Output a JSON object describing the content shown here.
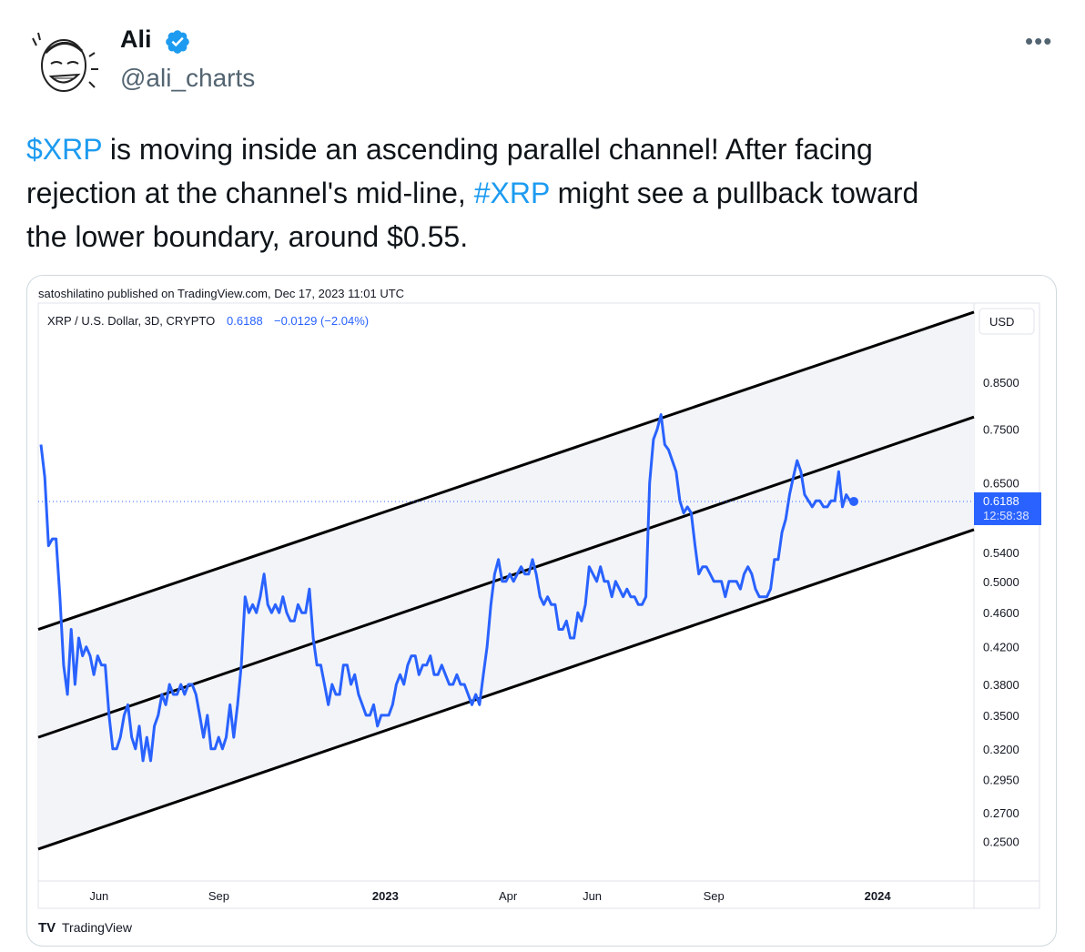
{
  "tweet": {
    "author_name": "Ali",
    "handle": "@ali_charts",
    "more_label": "•••",
    "text_parts": {
      "cashtag": "$XRP",
      "part1": " is moving inside an ascending parallel channel! After facing",
      "line2a": "rejection at the channel's mid-line, ",
      "hashtag": "#XRP",
      "line2b": " might see a pullback toward",
      "line3": "the lower boundary, around $0.55."
    },
    "colors": {
      "link": "#1d9bf0",
      "verified": "#1d9bf0",
      "chart_line": "#2962ff"
    },
    "avatar_icon": "cartoon-face-avatar"
  },
  "chart_header": {
    "published": "satoshilatino published on TradingView.com, Dec 17, 2023 11:01 UTC",
    "symbol": "XRP / U.S. Dollar, 3D, CRYPTO",
    "price": "0.6188",
    "change": "−0.0129 (−2.04%)",
    "currency": "USD",
    "last_price_label": "0.6188",
    "countdown": "12:58:38",
    "brand": "TradingView"
  },
  "chart_data": {
    "type": "line",
    "y_scale": "log",
    "ylim": [
      0.225,
      1.05
    ],
    "y_ticks": [
      "0.8500",
      "0.7500",
      "0.6500",
      "0.5400",
      "0.5000",
      "0.4600",
      "0.4200",
      "0.3800",
      "0.3500",
      "0.3200",
      "0.2950",
      "0.2700",
      "0.2500"
    ],
    "x_ticks": [
      "Jun",
      "Sep",
      "2023",
      "Apr",
      "Jun",
      "Sep",
      "2024"
    ],
    "channel": {
      "upper": [
        [
          0.0,
          0.44
        ],
        [
          1.0,
          1.025
        ]
      ],
      "middle": [
        [
          0.0,
          0.33
        ],
        [
          1.0,
          0.775
        ]
      ],
      "lower": [
        [
          0.0,
          0.245
        ],
        [
          1.0,
          0.574
        ]
      ]
    },
    "series": [
      {
        "values": [
          0.72,
          0.66,
          0.55,
          0.56,
          0.56,
          0.48,
          0.4,
          0.37,
          0.44,
          0.38,
          0.43,
          0.41,
          0.42,
          0.41,
          0.39,
          0.41,
          0.4,
          0.4,
          0.35,
          0.32,
          0.32,
          0.33,
          0.35,
          0.36,
          0.33,
          0.32,
          0.34,
          0.31,
          0.33,
          0.31,
          0.34,
          0.35,
          0.37,
          0.36,
          0.38,
          0.37,
          0.37,
          0.38,
          0.37,
          0.38,
          0.38,
          0.37,
          0.35,
          0.33,
          0.35,
          0.32,
          0.32,
          0.33,
          0.32,
          0.33,
          0.36,
          0.33,
          0.36,
          0.4,
          0.48,
          0.46,
          0.47,
          0.46,
          0.48,
          0.51,
          0.47,
          0.46,
          0.47,
          0.46,
          0.48,
          0.46,
          0.45,
          0.45,
          0.47,
          0.46,
          0.46,
          0.49,
          0.43,
          0.4,
          0.4,
          0.38,
          0.36,
          0.38,
          0.37,
          0.37,
          0.4,
          0.4,
          0.38,
          0.39,
          0.37,
          0.36,
          0.35,
          0.35,
          0.36,
          0.34,
          0.35,
          0.35,
          0.35,
          0.36,
          0.38,
          0.39,
          0.38,
          0.4,
          0.41,
          0.41,
          0.39,
          0.4,
          0.4,
          0.41,
          0.39,
          0.39,
          0.4,
          0.39,
          0.38,
          0.38,
          0.39,
          0.38,
          0.38,
          0.37,
          0.36,
          0.37,
          0.36,
          0.39,
          0.42,
          0.47,
          0.51,
          0.53,
          0.5,
          0.5,
          0.51,
          0.5,
          0.51,
          0.52,
          0.51,
          0.51,
          0.53,
          0.51,
          0.48,
          0.47,
          0.48,
          0.47,
          0.47,
          0.44,
          0.44,
          0.45,
          0.43,
          0.43,
          0.46,
          0.45,
          0.47,
          0.52,
          0.51,
          0.5,
          0.52,
          0.5,
          0.5,
          0.48,
          0.5,
          0.49,
          0.48,
          0.49,
          0.48,
          0.48,
          0.47,
          0.47,
          0.48,
          0.65,
          0.73,
          0.75,
          0.78,
          0.72,
          0.71,
          0.69,
          0.67,
          0.62,
          0.6,
          0.61,
          0.6,
          0.55,
          0.51,
          0.52,
          0.52,
          0.51,
          0.5,
          0.5,
          0.5,
          0.48,
          0.5,
          0.5,
          0.5,
          0.49,
          0.51,
          0.52,
          0.51,
          0.49,
          0.48,
          0.48,
          0.48,
          0.49,
          0.53,
          0.53,
          0.57,
          0.59,
          0.63,
          0.66,
          0.69,
          0.67,
          0.63,
          0.62,
          0.61,
          0.62,
          0.62,
          0.61,
          0.61,
          0.62,
          0.62,
          0.67,
          0.61,
          0.63,
          0.62,
          0.6188
        ]
      }
    ]
  }
}
